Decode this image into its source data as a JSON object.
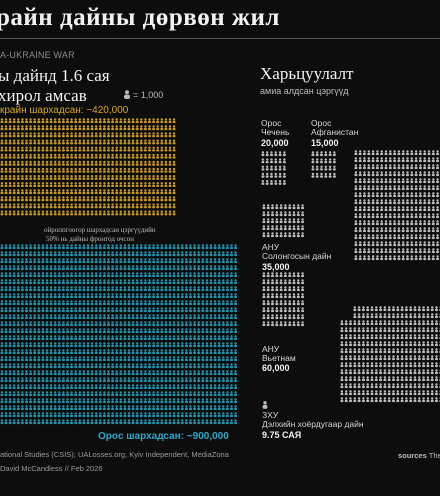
{
  "title": "райн дайны дөрвөн жил",
  "kicker": "A-UKRAINE WAR",
  "left_panel": {
    "heading_line1": "ы дайнд 1.6 сая",
    "heading_line2": "хирол амсав",
    "legend": "= 1,000",
    "ukraine_label": "крайн шархадсан: ~420,000",
    "europe_note_line1": "ойроппгоогор шархадсан цэргүүдийн",
    "europe_note_line2": "50% нь дайны фронтод очсон",
    "russia_label": "Орос шархадсан: ~900,000",
    "colors": {
      "ukraine": "#c99a22",
      "russia": "#1f93ad"
    }
  },
  "right_panel": {
    "heading": "Харьцуулалт",
    "subheading": "амиа алдсан цэргүүд",
    "chechnya": {
      "line1": "Орос",
      "line2": "Чечень",
      "value": "20,000"
    },
    "afghanistan": {
      "line1": "Орос",
      "line2": "Афганистан",
      "value": "15,000"
    },
    "korea": {
      "line1": "АНУ",
      "line2": "Солонгосын дайн",
      "value": "35,000"
    },
    "vietnam": {
      "line1": "АНУ",
      "line2": "Вьетнам",
      "value": "60,000"
    },
    "ww2": {
      "line1": "ЗХУ",
      "line2": "Дэлхийн хоёрдугаар дайн",
      "value": "9.75 САЯ"
    },
    "colors": {
      "figures": "#bcbcbc"
    }
  },
  "footer": {
    "source_line1": "ational Studies (CSIS); UALosses.org, Kyiv Independent, MediaZona",
    "source_line2": "David McCandless // Feb 2026",
    "sources_word": "sources",
    "sources_rest": "The E"
  },
  "chart_data": {
    "type": "pictogram",
    "unit": "= 1,000",
    "series": [
      {
        "name": "крайн шархадсан",
        "value": 420000
      },
      {
        "name": "Орос шархадсан",
        "value": 900000
      },
      {
        "name": "Орос Чечень",
        "value": 20000
      },
      {
        "name": "Орос Афганистан",
        "value": 15000
      },
      {
        "name": "АНУ Солонгосын дайн",
        "value": 35000
      },
      {
        "name": "АНУ Вьетнам",
        "value": 60000
      },
      {
        "name": "ЗХУ Дэлхийн хоёрдугаар дайн",
        "value": 9750000
      }
    ]
  }
}
